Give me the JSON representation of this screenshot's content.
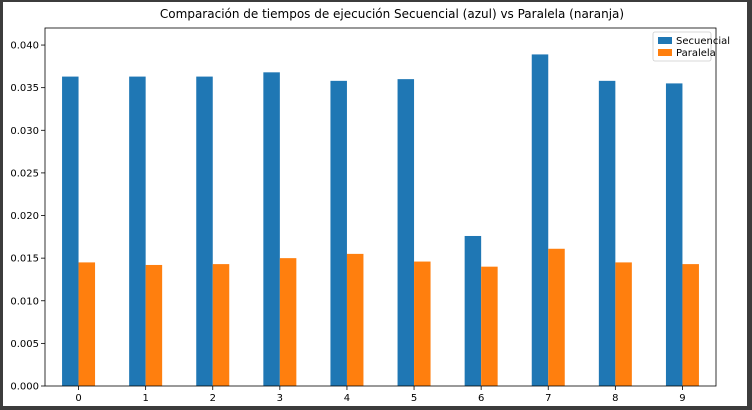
{
  "chart_data": {
    "type": "bar",
    "title": "Comparación de tiempos de ejecución Secuencial (azul) vs Paralela (naranja)",
    "xlabel": "",
    "ylabel": "",
    "categories": [
      "0",
      "1",
      "2",
      "3",
      "4",
      "5",
      "6",
      "7",
      "8",
      "9"
    ],
    "series": [
      {
        "name": "Secuencial",
        "color": "#1f77b4",
        "values": [
          0.0363,
          0.0363,
          0.0363,
          0.0368,
          0.0358,
          0.036,
          0.0176,
          0.0389,
          0.0358,
          0.0355
        ]
      },
      {
        "name": "Paralela",
        "color": "#ff7f0e",
        "values": [
          0.0145,
          0.0142,
          0.0143,
          0.015,
          0.0155,
          0.0146,
          0.014,
          0.0161,
          0.0145,
          0.0143
        ]
      }
    ],
    "ylim": [
      0,
      0.042
    ],
    "yticks": [
      "0.000",
      "0.005",
      "0.010",
      "0.015",
      "0.020",
      "0.025",
      "0.030",
      "0.035",
      "0.040"
    ],
    "ytick_values": [
      0,
      0.005,
      0.01,
      0.015,
      0.02,
      0.025,
      0.03,
      0.035,
      0.04
    ],
    "grid": false,
    "legend_position": "top-right"
  }
}
